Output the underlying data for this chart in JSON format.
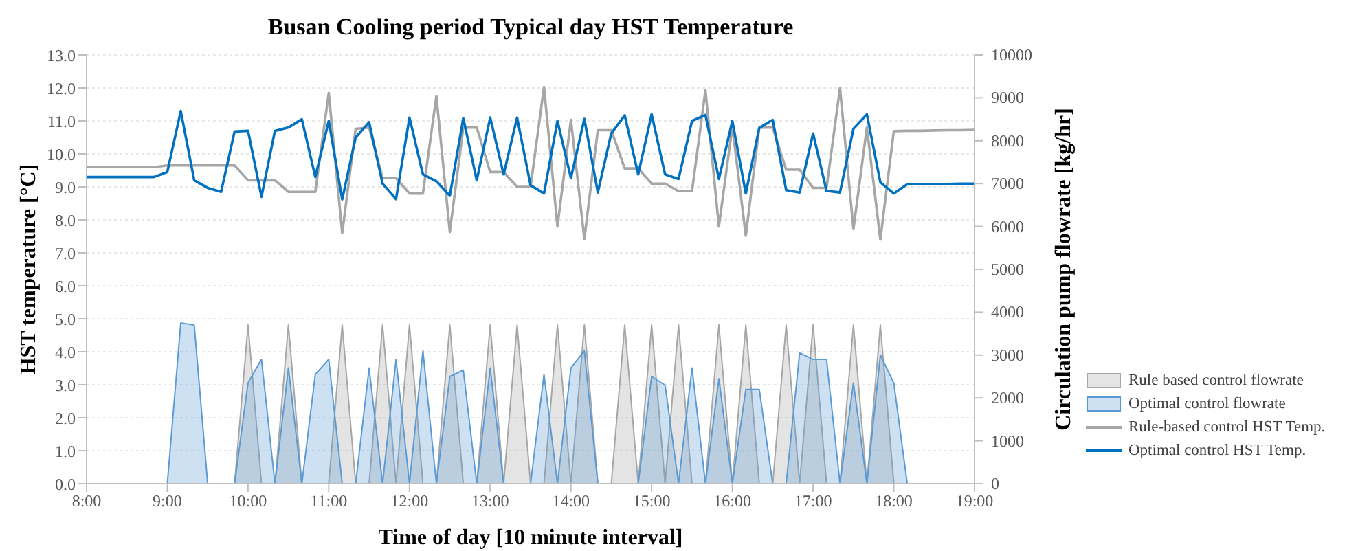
{
  "chart_data": {
    "type": "line",
    "title": "Busan Cooling period Typical day HST Temperature",
    "xlabel": "Time of day [10 minute interval]",
    "ylabel": "HST temperature [°C]",
    "y2label": "Circulation pump flowrate  [kg/hr]",
    "categories": [
      "8:00",
      null,
      null,
      null,
      null,
      null,
      "9:00",
      null,
      null,
      null,
      null,
      null,
      "10:00",
      null,
      null,
      null,
      null,
      null,
      "11:00",
      null,
      null,
      null,
      null,
      null,
      "12:00",
      null,
      null,
      null,
      null,
      null,
      "13:00",
      null,
      null,
      null,
      null,
      null,
      "14:00",
      null,
      null,
      null,
      null,
      null,
      "15:00",
      null,
      null,
      null,
      null,
      null,
      "16:00",
      null,
      null,
      null,
      null,
      null,
      "17:00",
      null,
      null,
      null,
      null,
      null,
      "18:00",
      null,
      null,
      null,
      null,
      null,
      "19:00"
    ],
    "series": [
      {
        "name": "Rule based control flowrate",
        "type": "area",
        "axis": "y2",
        "color": "#a6a6a6",
        "values": [
          0,
          0,
          0,
          0,
          0,
          0,
          0,
          0,
          0,
          0,
          0,
          0,
          3700,
          0,
          0,
          3700,
          0,
          0,
          0,
          3700,
          0,
          0,
          3700,
          0,
          3700,
          0,
          0,
          3700,
          0,
          0,
          3700,
          0,
          3700,
          0,
          0,
          3700,
          0,
          3700,
          0,
          0,
          3700,
          0,
          3700,
          0,
          3700,
          0,
          0,
          3700,
          0,
          3700,
          0,
          0,
          3700,
          0,
          3700,
          0,
          0,
          3700,
          0,
          3700,
          0,
          0,
          0,
          0,
          0,
          0,
          0
        ]
      },
      {
        "name": "Optimal control flowrate",
        "type": "area",
        "axis": "y2",
        "color": "#5b9bd5",
        "values": [
          0,
          0,
          0,
          0,
          0,
          0,
          0,
          3750,
          3700,
          0,
          0,
          0,
          2350,
          2900,
          0,
          2700,
          0,
          2550,
          2900,
          0,
          0,
          2700,
          0,
          2900,
          0,
          3100,
          0,
          2500,
          2650,
          0,
          2700,
          0,
          0,
          0,
          2550,
          0,
          2700,
          3100,
          0,
          0,
          0,
          0,
          2500,
          2300,
          0,
          2700,
          0,
          2450,
          0,
          2200,
          2200,
          0,
          0,
          3050,
          2900,
          2900,
          0,
          2350,
          0,
          3000,
          2350,
          0,
          0,
          0,
          0,
          0,
          0
        ]
      },
      {
        "name": "Rule-based control HST Temp.",
        "type": "line",
        "color": "#a6a6a6",
        "values": [
          9.6,
          9.6,
          9.6,
          9.6,
          9.6,
          9.6,
          9.65,
          9.65,
          9.65,
          9.65,
          9.65,
          9.65,
          9.2,
          9.2,
          9.2,
          8.85,
          8.85,
          8.85,
          11.85,
          7.6,
          10.76,
          10.8,
          9.27,
          9.27,
          8.8,
          8.8,
          11.75,
          7.63,
          10.8,
          10.8,
          9.45,
          9.45,
          9.0,
          9.0,
          12.03,
          7.8,
          11.03,
          7.42,
          10.72,
          10.72,
          9.56,
          9.56,
          9.1,
          9.1,
          8.87,
          8.87,
          11.93,
          7.8,
          10.83,
          7.52,
          10.8,
          10.8,
          9.52,
          9.52,
          8.97,
          8.97,
          12.0,
          7.72,
          10.8,
          7.4,
          10.69,
          10.7,
          10.7,
          10.71,
          10.72,
          10.72,
          10.73
        ]
      },
      {
        "name": "Optimal control HST Temp.",
        "type": "line",
        "color": "#0070c0",
        "values": [
          9.3,
          9.3,
          9.3,
          9.3,
          9.3,
          9.3,
          9.45,
          11.3,
          9.2,
          8.97,
          8.85,
          10.68,
          10.7,
          8.7,
          10.7,
          10.8,
          11.05,
          9.3,
          11.0,
          8.62,
          10.5,
          10.96,
          9.1,
          8.63,
          11.1,
          9.38,
          9.17,
          8.73,
          11.08,
          9.2,
          11.1,
          9.38,
          11.1,
          9.05,
          8.8,
          11.0,
          9.27,
          11.06,
          8.83,
          10.62,
          11.17,
          9.38,
          11.2,
          9.38,
          9.24,
          11.0,
          11.18,
          9.24,
          11.0,
          8.8,
          10.79,
          11.03,
          8.9,
          8.83,
          10.62,
          8.88,
          8.83,
          10.76,
          11.2,
          9.14,
          8.8,
          9.08,
          9.08,
          9.09,
          9.09,
          9.1,
          9.1
        ]
      }
    ],
    "ylim": [
      0,
      13
    ],
    "yticks": [
      {
        "value": 0,
        "label": "0.0"
      },
      {
        "value": 1,
        "label": "1.0"
      },
      {
        "value": 2,
        "label": "2.0"
      },
      {
        "value": 3,
        "label": "3.0"
      },
      {
        "value": 4,
        "label": "4.0"
      },
      {
        "value": 5,
        "label": "5.0"
      },
      {
        "value": 6,
        "label": "6.0"
      },
      {
        "value": 7,
        "label": "7.0"
      },
      {
        "value": 8,
        "label": "8.0"
      },
      {
        "value": 9,
        "label": "9.0"
      },
      {
        "value": 10,
        "label": "10.0"
      },
      {
        "value": 11,
        "label": "11.0"
      },
      {
        "value": 12,
        "label": "12.0"
      },
      {
        "value": 13,
        "label": "13.0"
      }
    ],
    "y2lim": [
      0,
      10000
    ],
    "y2ticks": [
      0,
      1000,
      2000,
      3000,
      4000,
      5000,
      6000,
      7000,
      8000,
      9000,
      10000
    ],
    "grid": "y",
    "legend": "right",
    "marker": "none",
    "line_style": "solid"
  }
}
